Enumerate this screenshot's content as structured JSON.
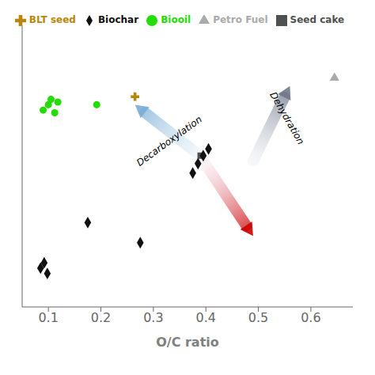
{
  "chart_data": {
    "type": "scatter",
    "xlabel": "O/C ratio",
    "xlim": [
      0.05,
      0.68
    ],
    "ylim": [
      0.25,
      2.35
    ],
    "xticks": [
      0.1,
      0.2,
      0.3,
      0.4,
      0.5,
      0.6
    ],
    "yticks": [],
    "tick_labels": "x",
    "grid": false,
    "legend": "top",
    "series": [
      {
        "name": "BLT seed",
        "color": "#b8860b",
        "marker": "cross",
        "x": [
          0.265
        ],
        "y": [
          1.82
        ]
      },
      {
        "name": "Seed cake",
        "color": "#505050",
        "marker": "square",
        "x": [
          0.39
        ],
        "y": [
          1.38
        ]
      },
      {
        "name": "Biochar",
        "color": "#111111",
        "marker": "diamond",
        "x": [
          0.085,
          0.092,
          0.098,
          0.175,
          0.275,
          0.375,
          0.385,
          0.395,
          0.405
        ],
        "y": [
          0.54,
          0.58,
          0.5,
          0.88,
          0.73,
          1.25,
          1.32,
          1.38,
          1.43
        ]
      },
      {
        "name": "Biooil",
        "color": "#22dd00",
        "marker": "circle",
        "x": [
          0.09,
          0.1,
          0.105,
          0.112,
          0.118,
          0.192
        ],
        "y": [
          1.72,
          1.76,
          1.8,
          1.7,
          1.78,
          1.76
        ]
      },
      {
        "name": "Petro Fuel",
        "color": "#aaaaaa",
        "marker": "triangle",
        "x": [
          0.645
        ],
        "y": [
          1.96
        ]
      }
    ],
    "annotations": [
      {
        "text": "Decarboxylation",
        "x": 0.33,
        "y": 1.49
      },
      {
        "text": "Dehydration",
        "x": 0.555,
        "y": 1.66
      }
    ],
    "arrows": [
      {
        "x": [
          0.395,
          0.265
        ],
        "y": [
          1.36,
          1.76
        ],
        "colors": [
          "#c8dff0",
          "#7aadd4"
        ]
      },
      {
        "x": [
          0.49,
          0.56
        ],
        "y": [
          1.34,
          1.9
        ],
        "colors": [
          "#c0c8d4",
          "#707888"
        ]
      },
      {
        "x": [
          0.395,
          0.49
        ],
        "y": [
          1.34,
          0.78
        ],
        "colors": [
          "#e8b8cc",
          "#cc0000"
        ]
      }
    ]
  }
}
